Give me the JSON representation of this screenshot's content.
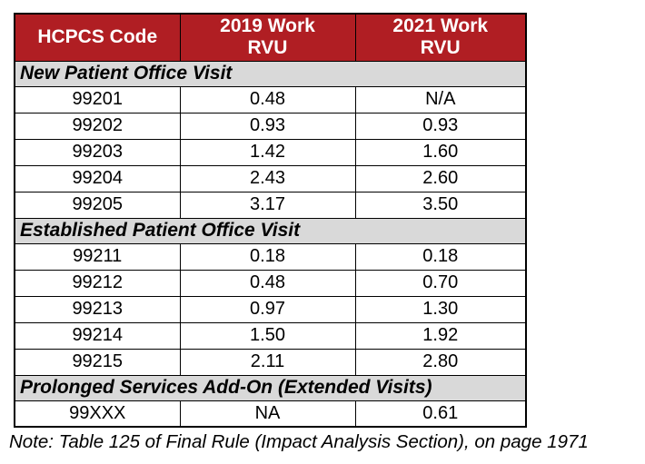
{
  "colors": {
    "header_bg": "#b01e23",
    "header_text": "#ffffff",
    "section_bg": "#d9d9d9",
    "border_color": "#000000",
    "text_color": "#000000"
  },
  "table": {
    "columns": [
      {
        "id": "hcpcs",
        "lines": [
          "HCPCS Code"
        ]
      },
      {
        "id": "rvu-2019",
        "lines": [
          "2019 Work",
          "RVU"
        ]
      },
      {
        "id": "rvu-2021",
        "lines": [
          "2021 Work",
          "RVU"
        ]
      }
    ],
    "sections": [
      {
        "title": "New Patient Office Visit",
        "rows": [
          {
            "code": "99201",
            "rvu2019": "0.48",
            "rvu2021": "N/A"
          },
          {
            "code": "99202",
            "rvu2019": "0.93",
            "rvu2021": "0.93"
          },
          {
            "code": "99203",
            "rvu2019": "1.42",
            "rvu2021": "1.60"
          },
          {
            "code": "99204",
            "rvu2019": "2.43",
            "rvu2021": "2.60"
          },
          {
            "code": "99205",
            "rvu2019": "3.17",
            "rvu2021": "3.50"
          }
        ]
      },
      {
        "title": "Established Patient Office Visit",
        "rows": [
          {
            "code": "99211",
            "rvu2019": "0.18",
            "rvu2021": "0.18"
          },
          {
            "code": "99212",
            "rvu2019": "0.48",
            "rvu2021": "0.70"
          },
          {
            "code": "99213",
            "rvu2019": "0.97",
            "rvu2021": "1.30"
          },
          {
            "code": "99214",
            "rvu2019": "1.50",
            "rvu2021": "1.92"
          },
          {
            "code": "99215",
            "rvu2019": "2.11",
            "rvu2021": "2.80"
          }
        ]
      },
      {
        "title": "Prolonged Services Add-On (Extended Visits)",
        "rows": [
          {
            "code": "99XXX",
            "rvu2019": "NA",
            "rvu2021": "0.61"
          }
        ]
      }
    ]
  },
  "note": "Note: Table 125 of Final Rule (Impact Analysis Section), on page 1971"
}
